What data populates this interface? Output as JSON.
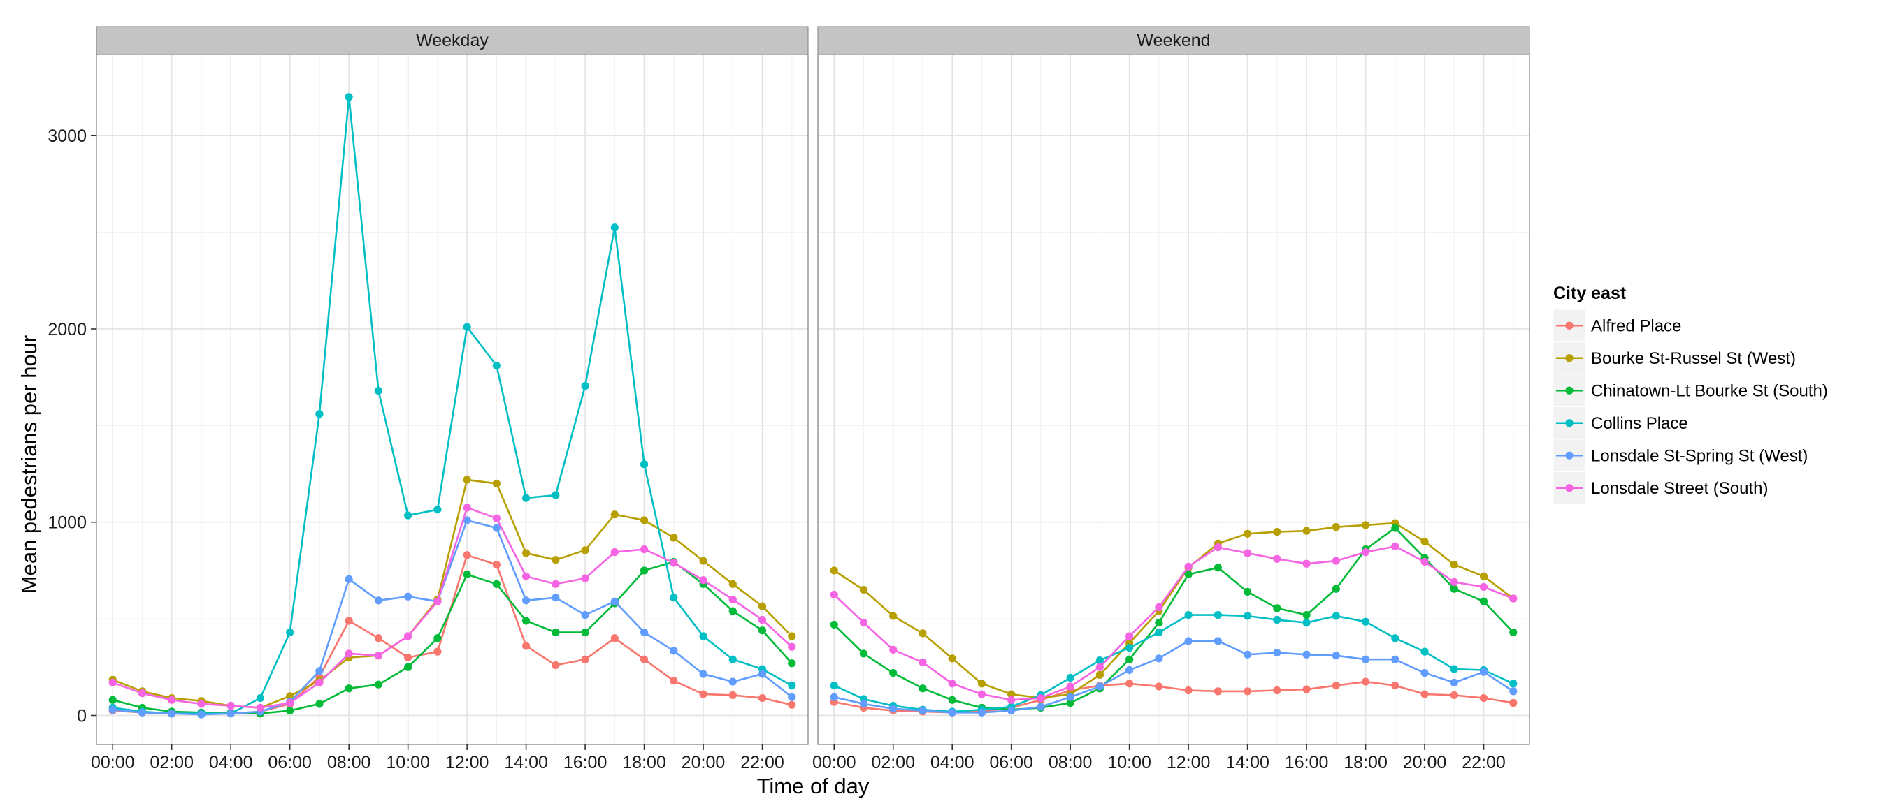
{
  "chart_data": {
    "type": "line",
    "xlabel": "Time of day",
    "ylabel": "Mean pedestrians per hour",
    "ylim": [
      -150,
      3420
    ],
    "xlim": [
      -0.55,
      23.55
    ],
    "yticks": [
      0,
      1000,
      2000,
      3000
    ],
    "xticks": [
      0,
      2,
      4,
      6,
      8,
      10,
      12,
      14,
      16,
      18,
      20,
      22
    ],
    "xtick_labels": [
      "00:00",
      "02:00",
      "04:00",
      "06:00",
      "08:00",
      "10:00",
      "12:00",
      "14:00",
      "16:00",
      "18:00",
      "20:00",
      "22:00"
    ],
    "x": [
      0,
      1,
      2,
      3,
      4,
      5,
      6,
      7,
      8,
      9,
      10,
      11,
      12,
      13,
      14,
      15,
      16,
      17,
      18,
      19,
      20,
      21,
      22,
      23
    ],
    "grid": true,
    "legend": {
      "title": "City east",
      "position": "right",
      "entries": [
        "Alfred Place",
        "Bourke St-Russel St (West)",
        "Chinatown-Lt Bourke St (South)",
        "Collins Place",
        "Lonsdale St-Spring St (West)",
        "Lonsdale Street (South)"
      ]
    },
    "panels": [
      {
        "title": "Weekday",
        "series": [
          {
            "name": "Alfred Place",
            "color": "#f8766d",
            "values": [
              25,
              15,
              10,
              10,
              10,
              20,
              60,
              200,
              490,
              400,
              300,
              330,
              830,
              780,
              360,
              260,
              290,
              400,
              290,
              180,
              110,
              105,
              90,
              55
            ]
          },
          {
            "name": "Bourke St-Russel St (West)",
            "color": "#b79f00",
            "values": [
              185,
              125,
              90,
              75,
              50,
              40,
              100,
              180,
              300,
              310,
              410,
              600,
              1220,
              1200,
              840,
              805,
              855,
              1040,
              1010,
              920,
              800,
              680,
              565,
              410
            ]
          },
          {
            "name": "Chinatown-Lt Bourke St (South)",
            "color": "#00ba38",
            "values": [
              80,
              40,
              20,
              15,
              15,
              10,
              25,
              60,
              140,
              160,
              250,
              400,
              730,
              680,
              490,
              430,
              430,
              580,
              750,
              795,
              680,
              540,
              440,
              270
            ]
          },
          {
            "name": "Collins Place",
            "color": "#00bfc4",
            "values": [
              40,
              20,
              10,
              10,
              10,
              90,
              430,
              1560,
              3200,
              1680,
              1035,
              1065,
              2010,
              1810,
              1125,
              1140,
              1705,
              2525,
              1300,
              610,
              410,
              290,
              240,
              155
            ]
          },
          {
            "name": "Lonsdale St-Spring St (West)",
            "color": "#619cff",
            "values": [
              30,
              15,
              10,
              5,
              10,
              20,
              70,
              230,
              705,
              595,
              615,
              590,
              1010,
              970,
              595,
              610,
              520,
              590,
              430,
              335,
              215,
              175,
              215,
              95
            ]
          },
          {
            "name": "Lonsdale Street (South)",
            "color": "#f564e3",
            "values": [
              170,
              115,
              80,
              60,
              50,
              40,
              65,
              170,
              320,
              310,
              410,
              590,
              1075,
              1020,
              720,
              680,
              710,
              845,
              860,
              790,
              700,
              600,
              495,
              355
            ]
          }
        ]
      },
      {
        "title": "Weekend",
        "series": [
          {
            "name": "Alfred Place",
            "color": "#f8766d",
            "values": [
              70,
              40,
              25,
              20,
              15,
              20,
              40,
              80,
              130,
              155,
              165,
              150,
              130,
              125,
              125,
              130,
              135,
              155,
              175,
              155,
              110,
              105,
              90,
              65
            ]
          },
          {
            "name": "Bourke St-Russel St (West)",
            "color": "#b79f00",
            "values": [
              750,
              650,
              515,
              425,
              295,
              165,
              110,
              90,
              110,
              210,
              375,
              540,
              765,
              890,
              940,
              950,
              955,
              975,
              985,
              995,
              900,
              780,
              720,
              605
            ]
          },
          {
            "name": "Chinatown-Lt Bourke St (South)",
            "color": "#00ba38",
            "values": [
              470,
              320,
              220,
              140,
              80,
              40,
              30,
              40,
              65,
              140,
              290,
              480,
              730,
              765,
              640,
              555,
              520,
              655,
              860,
              970,
              815,
              655,
              590,
              430
            ]
          },
          {
            "name": "Collins Place",
            "color": "#00bfc4",
            "values": [
              155,
              85,
              50,
              30,
              20,
              30,
              45,
              105,
              195,
              285,
              350,
              430,
              520,
              520,
              515,
              495,
              480,
              515,
              485,
              400,
              330,
              240,
              235,
              165
            ]
          },
          {
            "name": "Lonsdale St-Spring St (West)",
            "color": "#619cff",
            "values": [
              95,
              60,
              35,
              25,
              15,
              15,
              25,
              45,
              95,
              150,
              235,
              295,
              385,
              385,
              315,
              325,
              315,
              310,
              290,
              290,
              220,
              170,
              225,
              125
            ]
          },
          {
            "name": "Lonsdale Street (South)",
            "color": "#f564e3",
            "values": [
              625,
              480,
              340,
              275,
              165,
              110,
              80,
              90,
              150,
              250,
              410,
              560,
              770,
              870,
              840,
              810,
              785,
              800,
              845,
              875,
              795,
              690,
              665,
              605
            ]
          }
        ]
      }
    ]
  }
}
